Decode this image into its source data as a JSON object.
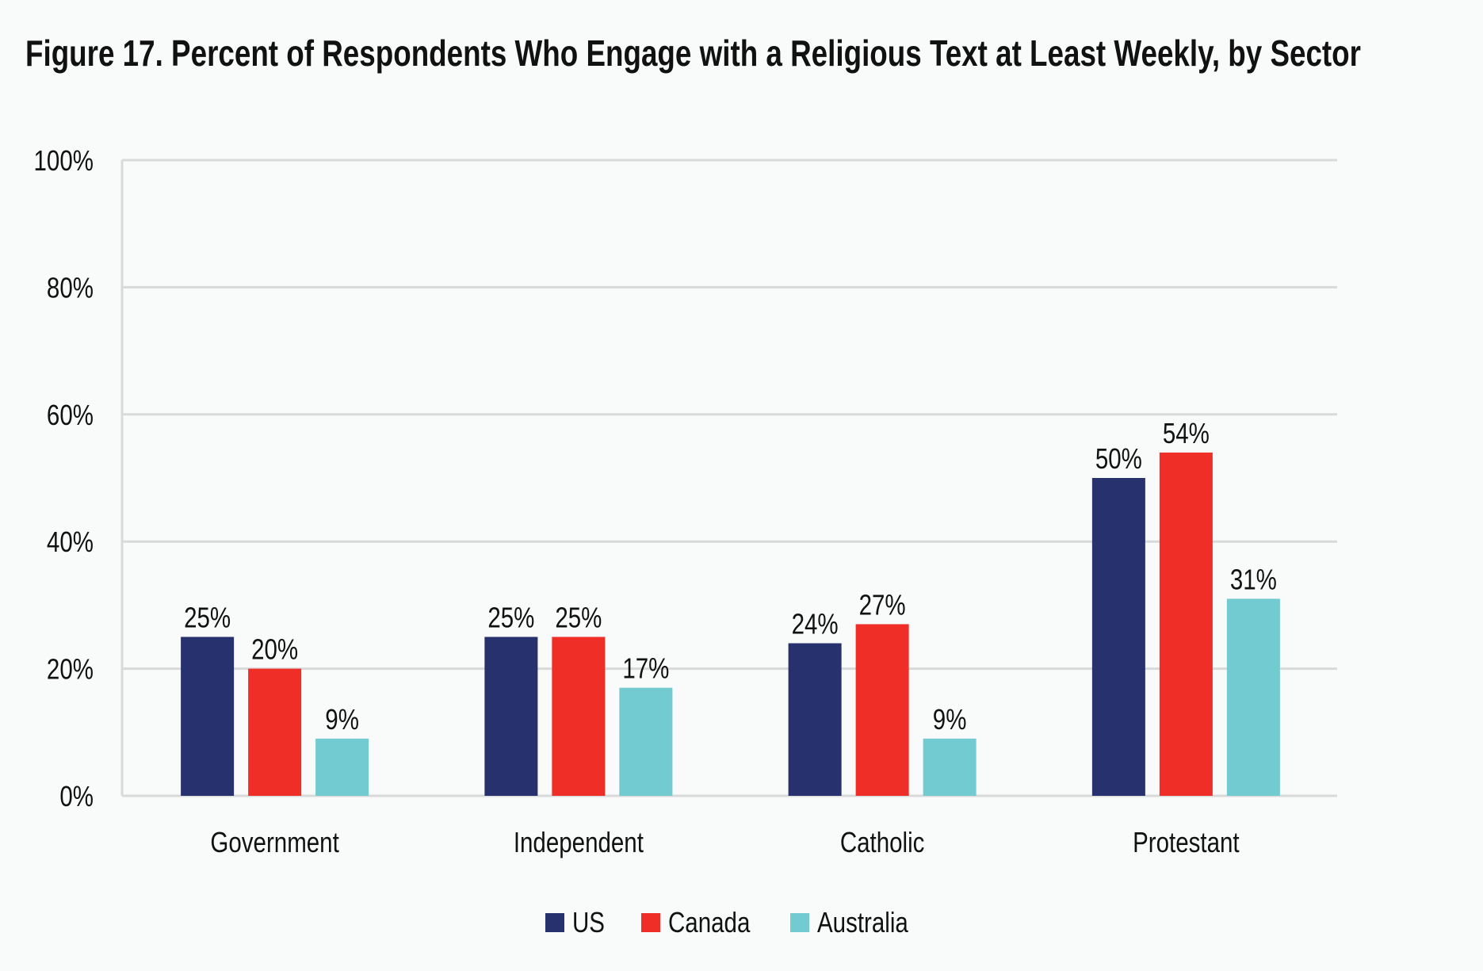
{
  "chart_data": {
    "type": "bar",
    "title": "Figure 17. Percent of Respondents Who Engage with a Religious Text at Least Weekly, by Sector",
    "xlabel": "",
    "ylabel": "",
    "categories": [
      "Government",
      "Independent",
      "Catholic",
      "Protestant"
    ],
    "series": [
      {
        "name": "US",
        "color": "#26316d",
        "values": [
          25,
          25,
          24,
          50
        ]
      },
      {
        "name": "Canada",
        "color": "#ee2e27",
        "values": [
          20,
          25,
          27,
          54
        ]
      },
      {
        "name": "Australia",
        "color": "#72cbd0",
        "values": [
          9,
          17,
          9,
          31
        ]
      }
    ],
    "data_labels": [
      [
        "25%",
        "25%",
        "24%",
        "50%"
      ],
      [
        "20%",
        "25%",
        "27%",
        "54%"
      ],
      [
        "9%",
        "17%",
        "9%",
        "31%"
      ]
    ],
    "ylim": [
      0,
      100
    ],
    "yticks": [
      0,
      20,
      40,
      60,
      80,
      100
    ],
    "ytick_labels": [
      "0%",
      "20%",
      "40%",
      "60%",
      "80%",
      "100%"
    ],
    "grid": true,
    "legend_position": "bottom-center"
  }
}
